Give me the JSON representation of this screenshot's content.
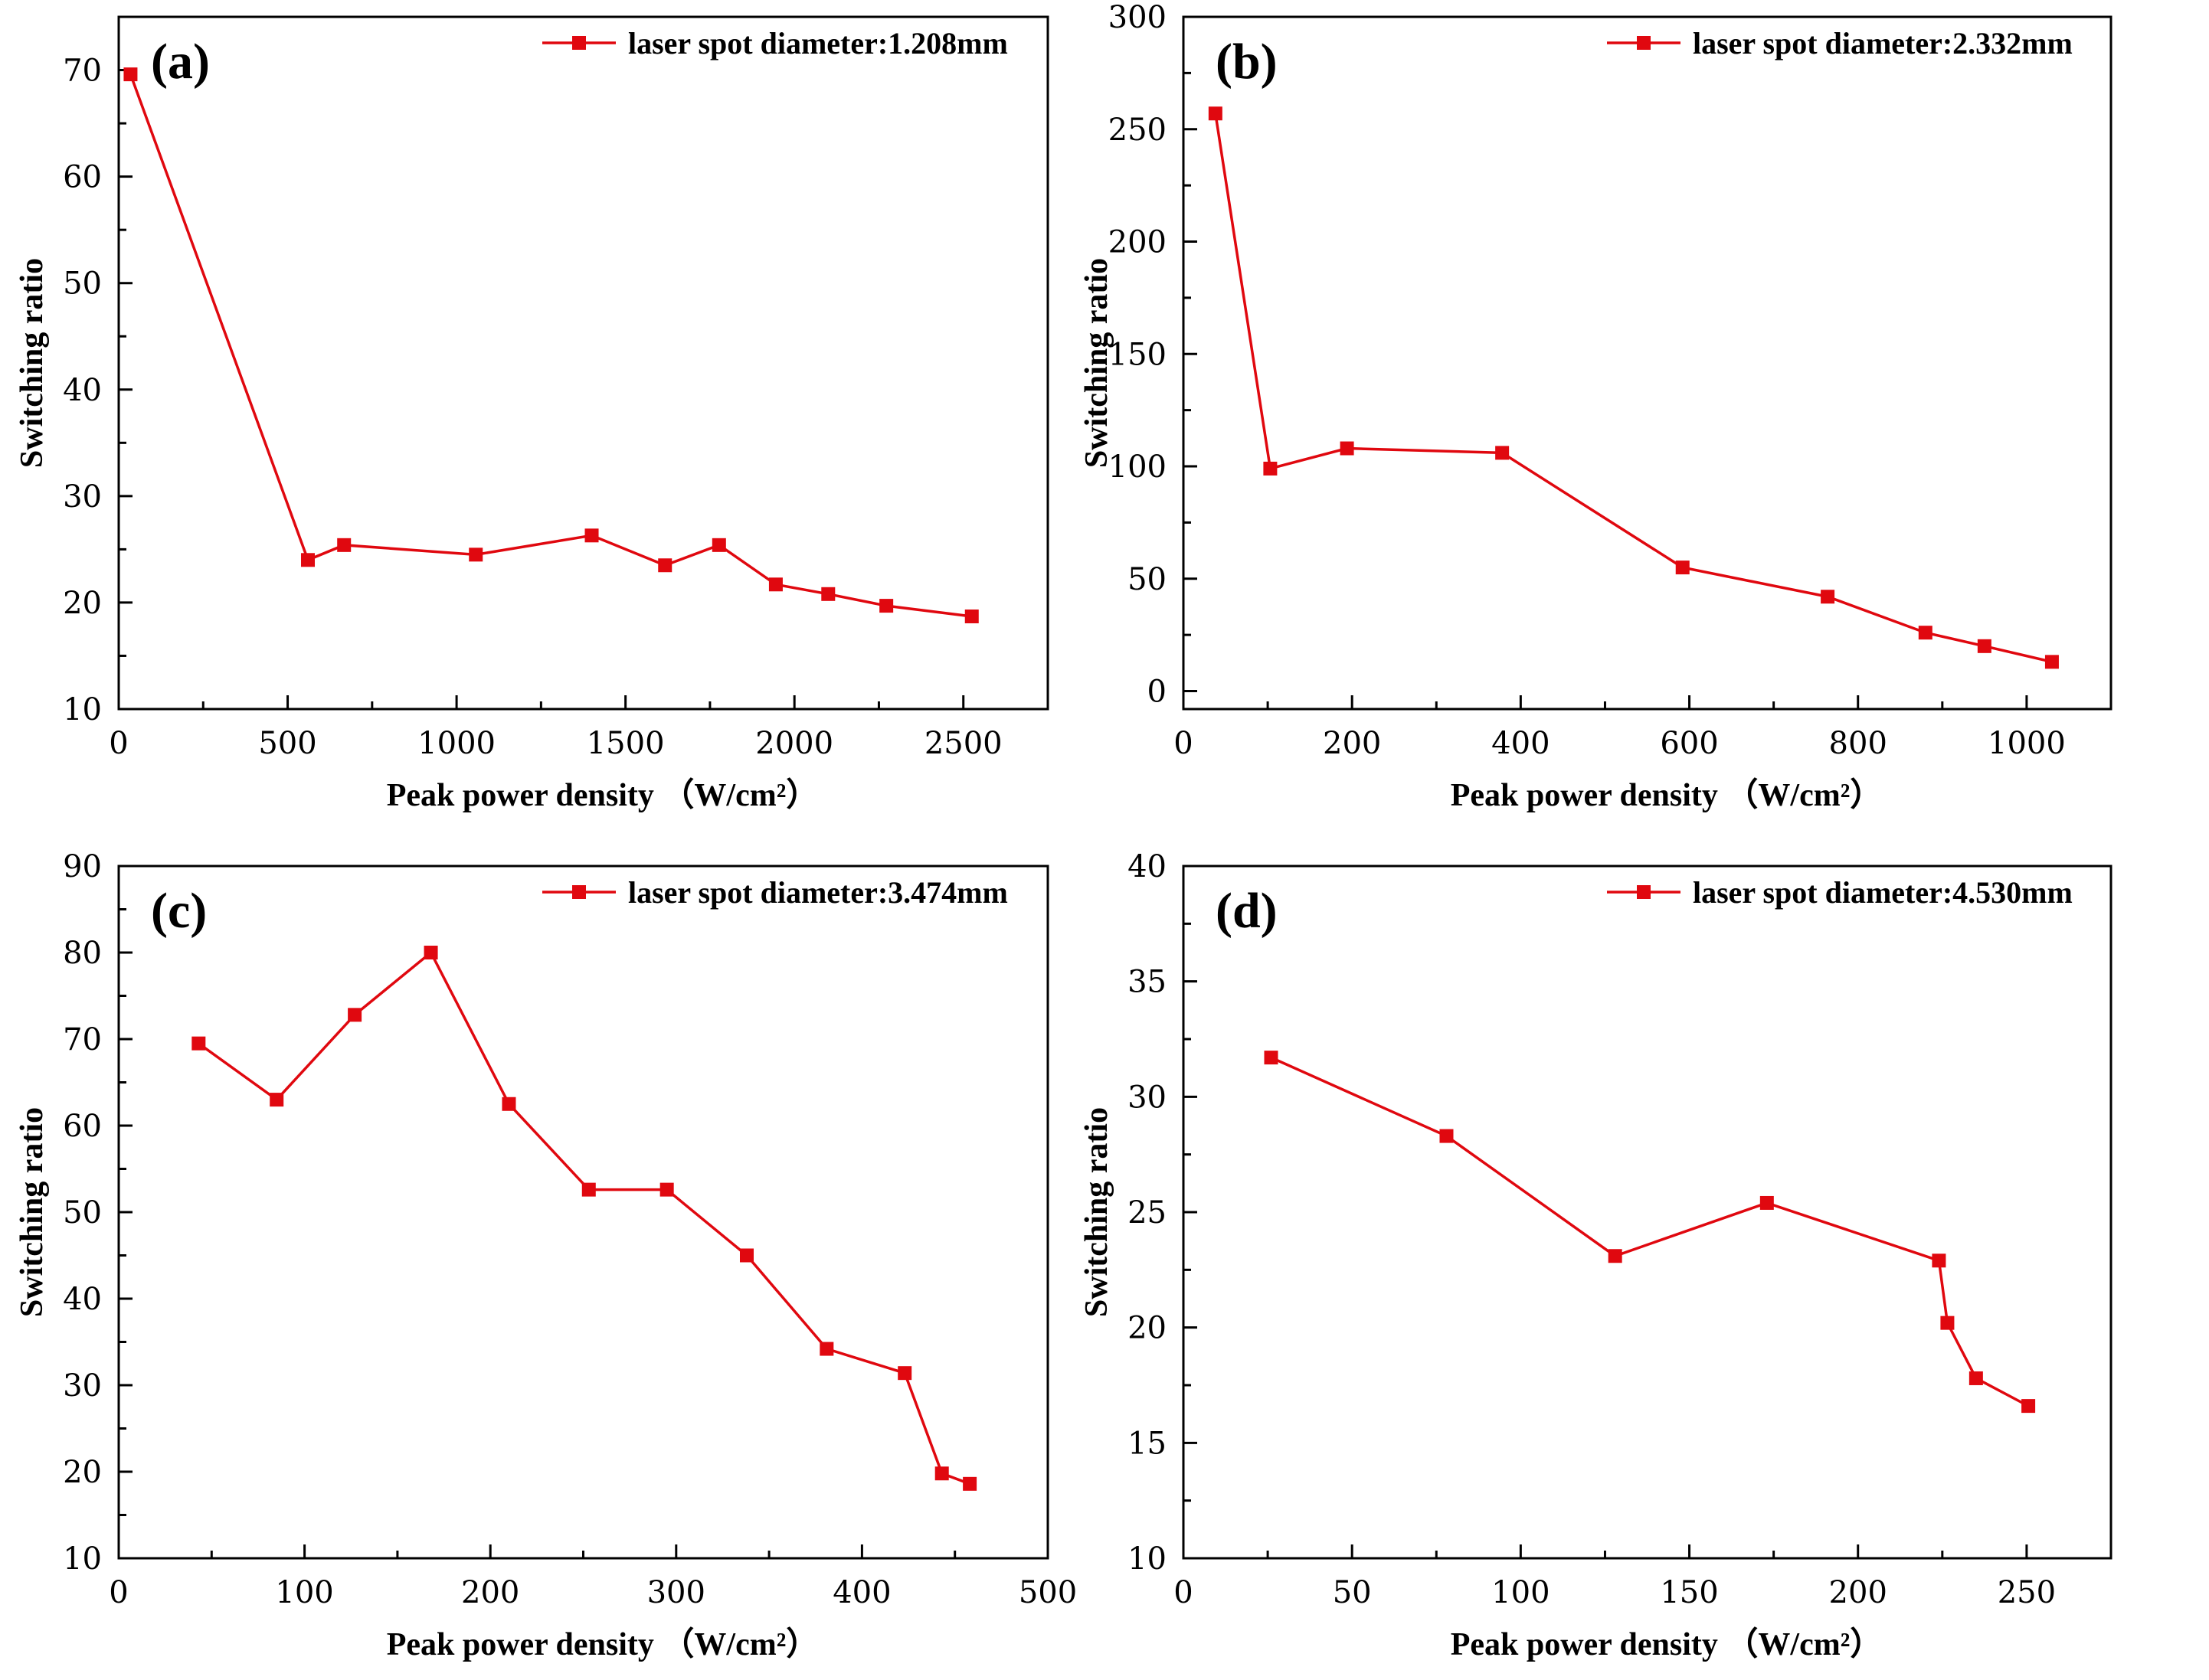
{
  "colors": {
    "series": "#e0080f",
    "axis": "#000000"
  },
  "chart_data": [
    {
      "type": "line",
      "panel_label": "(a)",
      "xlabel": "Peak power density （W/cm²）",
      "ylabel": "Switching ratio",
      "xlim": [
        0,
        2750
      ],
      "ylim": [
        10,
        75
      ],
      "xticks": [
        0,
        500,
        1000,
        1500,
        2000,
        2500
      ],
      "yticks": [
        10,
        20,
        30,
        40,
        50,
        60,
        70
      ],
      "legend_position": "top-right",
      "grid": false,
      "series": [
        {
          "name": "laser spot diameter:1.208mm",
          "x": [
            35,
            560,
            667,
            1057,
            1400,
            1617,
            1777,
            1945,
            2100,
            2272,
            2525
          ],
          "y": [
            69.6,
            24.0,
            25.4,
            24.5,
            26.3,
            23.5,
            25.4,
            21.7,
            20.8,
            19.7,
            18.7
          ]
        }
      ]
    },
    {
      "type": "line",
      "panel_label": "(b)",
      "xlabel": "Peak power density （W/cm²）",
      "ylabel": "Switching ratio",
      "xlim": [
        0,
        1100
      ],
      "ylim": [
        -8,
        300
      ],
      "xticks": [
        0,
        200,
        400,
        600,
        800,
        1000
      ],
      "yticks": [
        0,
        50,
        100,
        150,
        200,
        250,
        300
      ],
      "legend_position": "top-right",
      "grid": false,
      "series": [
        {
          "name": "laser spot diameter:2.332mm",
          "x": [
            38,
            103,
            194,
            378,
            592,
            764,
            880,
            950,
            1030
          ],
          "y": [
            257,
            99,
            108,
            106,
            55,
            42,
            26,
            20,
            13
          ]
        }
      ]
    },
    {
      "type": "line",
      "panel_label": "(c)",
      "xlabel": "Peak power density （W/cm²）",
      "ylabel": "Switching ratio",
      "xlim": [
        0,
        500
      ],
      "ylim": [
        10,
        90
      ],
      "xticks": [
        0,
        100,
        200,
        300,
        400,
        500
      ],
      "yticks": [
        10,
        20,
        30,
        40,
        50,
        60,
        70,
        80,
        90
      ],
      "legend_position": "top-right",
      "grid": false,
      "series": [
        {
          "name": "laser spot diameter:3.474mm",
          "x": [
            43,
            85,
            127,
            168,
            210,
            253,
            295,
            338,
            381,
            423,
            443,
            458
          ],
          "y": [
            69.5,
            63.0,
            72.8,
            80.0,
            62.5,
            52.6,
            52.6,
            45.0,
            34.2,
            31.4,
            19.8,
            18.6
          ]
        }
      ]
    },
    {
      "type": "line",
      "panel_label": "(d)",
      "xlabel": "Peak power density （W/cm²）",
      "ylabel": "Switching ratio",
      "xlim": [
        0,
        275
      ],
      "ylim": [
        10,
        40
      ],
      "xticks": [
        0,
        50,
        100,
        150,
        200,
        250
      ],
      "yticks": [
        10,
        15,
        20,
        25,
        30,
        35,
        40
      ],
      "legend_position": "top-right",
      "grid": false,
      "series": [
        {
          "name": "laser spot diameter:4.530mm",
          "x": [
            26,
            78,
            128,
            173,
            224,
            226.5,
            235,
            250.5
          ],
          "y": [
            31.7,
            28.3,
            23.1,
            25.4,
            22.9,
            20.2,
            17.8,
            16.6
          ]
        }
      ]
    }
  ]
}
